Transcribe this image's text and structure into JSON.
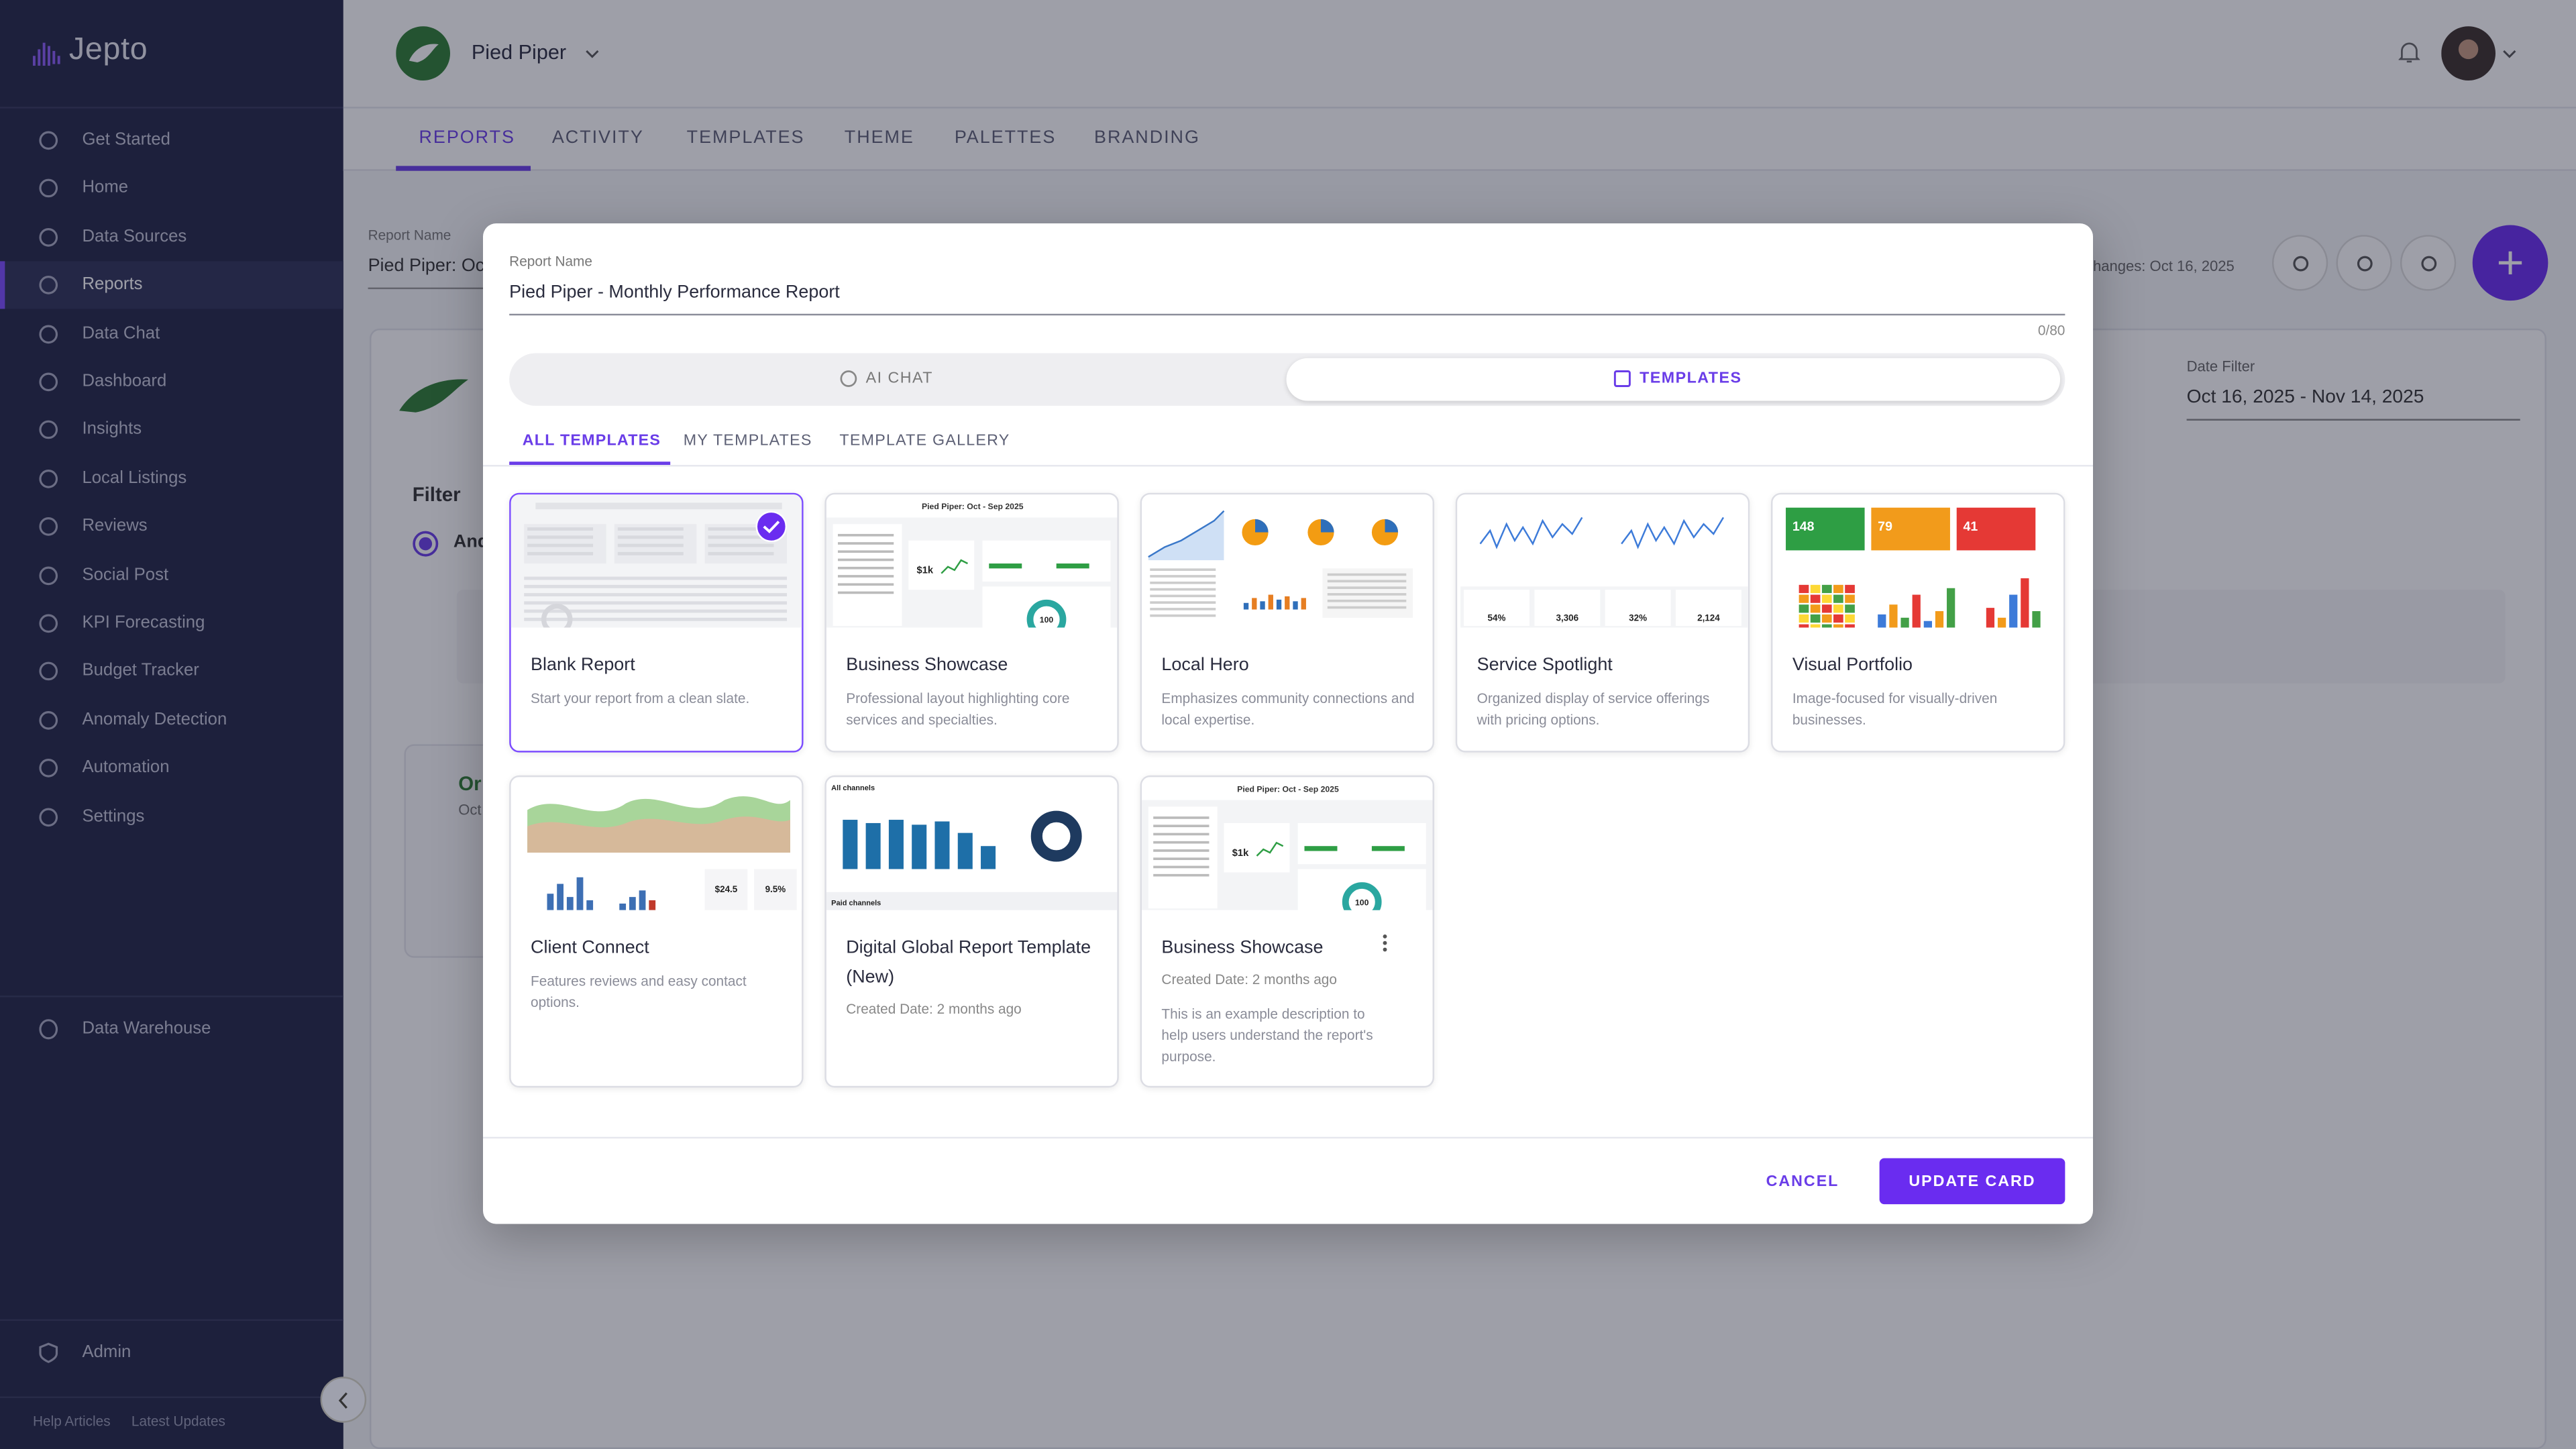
{
  "sidebar": {
    "logo": "Jepto",
    "items": [
      "Get Started",
      "Home",
      "Data Sources",
      "Reports",
      "Data Chat",
      "Dashboard",
      "Insights",
      "Local Listings",
      "Reviews",
      "Social Post",
      "KPI Forecasting",
      "Budget Tracker",
      "Anomaly Detection",
      "Automation",
      "Settings"
    ],
    "secondary": [
      "Data Warehouse"
    ],
    "admin": "Admin",
    "footer": [
      "Help Articles",
      "Latest Updates"
    ]
  },
  "header": {
    "org": "Pied Piper",
    "tabs": [
      "REPORTS",
      "ACTIVITY",
      "TEMPLATES",
      "THEME",
      "PALETTES",
      "BRANDING"
    ]
  },
  "background": {
    "report_name_label": "Report Name",
    "report_name": "Pied Piper: Oc",
    "changes": "hanges: Oct 16, 2025",
    "date_filter_label": "Date Filter",
    "date_filter": "Oct 16, 2025 - Nov 14, 2025",
    "filter": "Filter",
    "and": "And",
    "card_title": "Or",
    "card_sub": "Oct"
  },
  "modal": {
    "report_name_label": "Report Name",
    "report_name": "Pied Piper - Monthly Performance Report",
    "counter": "0/80",
    "modes": [
      "AI CHAT",
      "TEMPLATES"
    ],
    "tabs": [
      "ALL TEMPLATES",
      "MY TEMPLATES",
      "TEMPLATE GALLERY"
    ],
    "templates": [
      {
        "title": "Blank Report",
        "description": "Start your report from a clean slate."
      },
      {
        "title": "Business Showcase",
        "description": "Professional layout highlighting core services and specialties.",
        "thumb_texts": [
          "Pied Piper: Oct - Sep 2025",
          "$1k",
          "100"
        ]
      },
      {
        "title": "Local Hero",
        "description": "Emphasizes community connections and local expertise."
      },
      {
        "title": "Service Spotlight",
        "description": "Organized display of service offerings with pricing options.",
        "thumb_texts": [
          "54%",
          "3,306",
          "32%",
          "2,124"
        ]
      },
      {
        "title": "Visual Portfolio",
        "description": "Image-focused for visually-driven businesses.",
        "thumb_texts": [
          "148",
          "79",
          "41"
        ]
      },
      {
        "title": "Client Connect",
        "description": "Features reviews and easy contact options.",
        "thumb_texts": [
          "$24.5",
          "9.5%"
        ]
      },
      {
        "title": "Digital Global Report Template (New)",
        "meta": "Created Date: 2 months ago",
        "thumb_texts": [
          "All channels",
          "Paid channels"
        ]
      },
      {
        "title": "Business Showcase",
        "meta": "Created Date: 2 months ago",
        "description": "This is an example description to help users understand the report's purpose.",
        "thumb_texts": [
          "Pied Piper: Oct - Sep 2025",
          "$1k",
          "100"
        ]
      }
    ],
    "cancel": "CANCEL",
    "submit": "UPDATE CARD"
  }
}
